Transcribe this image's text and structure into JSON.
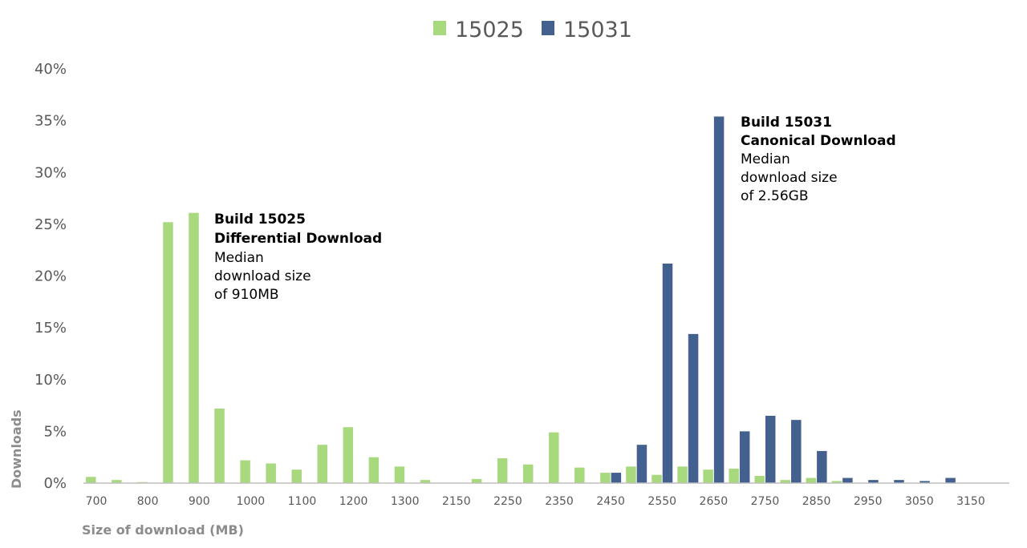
{
  "chart_data": {
    "type": "bar",
    "xlabel": "Size of download (MB)",
    "ylabel": "Downloads",
    "ylim": [
      0,
      40
    ],
    "yticks": [
      "0%",
      "5%",
      "10%",
      "15%",
      "20%",
      "25%",
      "30%",
      "35%",
      "40%"
    ],
    "grid": false,
    "legend_position": "top-center",
    "categories": [
      "700",
      "750",
      "800",
      "850",
      "900",
      "950",
      "1000",
      "1050",
      "1100",
      "1150",
      "1200",
      "1250",
      "1300",
      "1350",
      "2150",
      "2200",
      "2250",
      "2300",
      "2350",
      "2400",
      "2450",
      "2500",
      "2550",
      "2600",
      "2650",
      "2700",
      "2750",
      "2800",
      "2850",
      "2900",
      "2950",
      "3000",
      "3050",
      "3100",
      "3150",
      "3200"
    ],
    "tick_labels": [
      "700",
      "800",
      "900",
      "1000",
      "1100",
      "1200",
      "1300",
      "2150",
      "2250",
      "2350",
      "2450",
      "2550",
      "2650",
      "2750",
      "2850",
      "2950",
      "3050",
      "3150"
    ],
    "series": [
      {
        "name": "15025",
        "color": "#a9d97f",
        "values": [
          0.6,
          0.3,
          0.1,
          25.2,
          26.1,
          7.2,
          2.2,
          1.9,
          1.3,
          3.7,
          5.4,
          2.5,
          1.6,
          0.3,
          0,
          0.4,
          2.4,
          1.8,
          4.9,
          1.5,
          1.0,
          1.6,
          0.8,
          1.6,
          1.3,
          1.4,
          0.7,
          0.3,
          0.5,
          0.2,
          0,
          0,
          0,
          0,
          0,
          0
        ]
      },
      {
        "name": "15031",
        "color": "#44608f",
        "values": [
          0,
          0,
          0,
          0,
          0,
          0,
          0,
          0,
          0,
          0,
          0,
          0,
          0,
          0,
          0,
          0,
          0,
          0,
          0,
          0,
          1.0,
          3.7,
          21.2,
          14.4,
          35.4,
          5.0,
          6.5,
          6.1,
          3.1,
          0.5,
          0.3,
          0.3,
          0.2,
          0.5,
          0,
          0
        ]
      }
    ],
    "annotations": [
      {
        "title": [
          "Build 15025",
          "Differential Download"
        ],
        "body": [
          "Median",
          "download size",
          "of 910MB"
        ]
      },
      {
        "title": [
          "Build 15031",
          "Canonical Download"
        ],
        "body": [
          "Median",
          "download size",
          "of 2.56GB"
        ]
      }
    ]
  }
}
